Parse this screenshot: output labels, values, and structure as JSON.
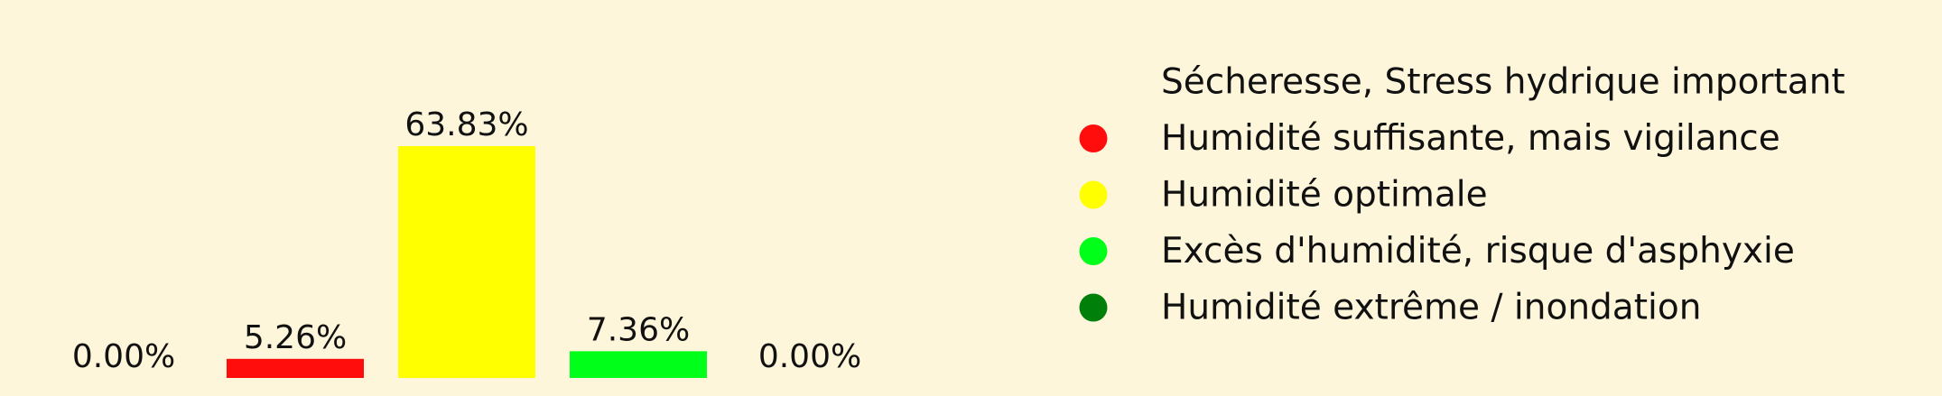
{
  "chart_data": {
    "type": "bar",
    "categories": [
      "Sécheresse, Stress hydrique important",
      "Humidité suffisante, mais vigilance",
      "Humidité optimale",
      "Excès d'humidité, risque d'asphyxie",
      "Humidité extrême / inondation"
    ],
    "values": [
      0.0,
      5.26,
      63.83,
      7.36,
      0.0
    ],
    "data_labels": [
      "0.00%",
      "5.26%",
      "63.83%",
      "7.36%",
      "0.00%"
    ],
    "colors": [
      "#FEF6DA",
      "#FF0D0D",
      "#FFFF00",
      "#00FF19",
      "#007F0B"
    ],
    "legend_entries": [
      "Sécheresse, Stress hydrique important",
      "Humidité suffisante, mais vigilance",
      "Humidité optimale",
      "Excès d'humidité, risque d'asphyxie",
      "Humidité extrême / inondation"
    ],
    "legend_position": "right",
    "grid": false,
    "axes_visible": false,
    "ylim": [
      0,
      63.83
    ],
    "title": "",
    "xlabel": "",
    "ylabel": ""
  }
}
